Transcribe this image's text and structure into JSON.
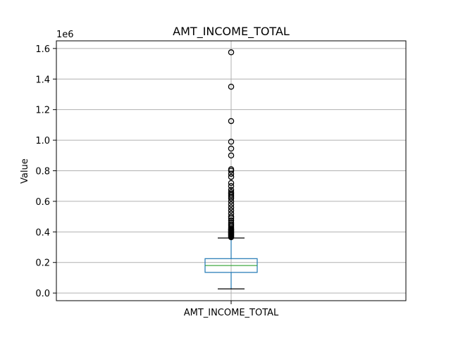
{
  "chart_data": {
    "type": "box",
    "title": "AMT_INCOME_TOTAL",
    "xlabel": "",
    "ylabel": "Value",
    "y_scale_label": "1e6",
    "categories": [
      "AMT_INCOME_TOTAL"
    ],
    "ylim": [
      -0.05,
      1.65
    ],
    "yticks": [
      0.0,
      0.2,
      0.4,
      0.6,
      0.8,
      1.0,
      1.2,
      1.4,
      1.6
    ],
    "ytick_labels": [
      "0.0",
      "0.2",
      "0.4",
      "0.6",
      "0.8",
      "1.0",
      "1.2",
      "1.4",
      "1.6"
    ],
    "grid": true,
    "box": {
      "whisker_low": 0.027,
      "q1": 0.135,
      "median": 0.18,
      "q3": 0.225,
      "whisker_high": 0.36
    },
    "outliers": [
      0.365,
      0.37,
      0.375,
      0.38,
      0.385,
      0.39,
      0.395,
      0.4,
      0.405,
      0.41,
      0.415,
      0.42,
      0.43,
      0.44,
      0.45,
      0.46,
      0.475,
      0.49,
      0.5,
      0.52,
      0.54,
      0.56,
      0.58,
      0.6,
      0.62,
      0.63,
      0.64,
      0.65,
      0.66,
      0.675,
      0.7,
      0.72,
      0.76,
      0.78,
      0.8,
      0.81,
      0.9,
      0.945,
      0.99,
      1.125,
      1.35,
      1.575
    ]
  }
}
